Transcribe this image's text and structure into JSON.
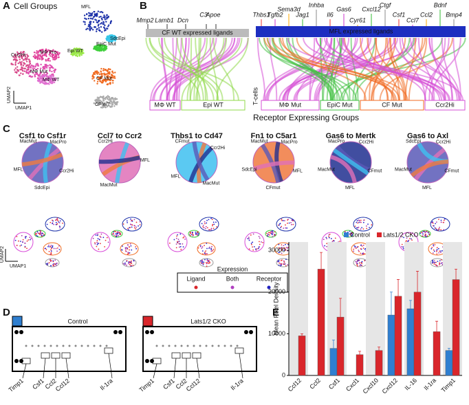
{
  "panel_a": {
    "label": "A",
    "title": "Cell Groups",
    "clusters": [
      "MFL",
      "SdcEpi",
      "EpiC Mut",
      "Epi WT",
      "MΦ Pro.",
      "Ccr2Hi",
      "MΦ Mut",
      "MΦ WT",
      "CF Mut",
      "CF WT"
    ],
    "axis_y": "UMAP2",
    "axis_x": "UMAP1"
  },
  "panel_b": {
    "label": "B",
    "left_genes": [
      "Mmp2",
      "Lamb1",
      "Dcn",
      "C3",
      "Apoe"
    ],
    "left_header": "CF WT expressed ligands",
    "right_genes": [
      "Thbs1",
      "Tgfb2",
      "Sema3d",
      "Jag1",
      "Inhba",
      "Il6",
      "Gas6",
      "Cyr61",
      "Cxcl12",
      "Ctgf",
      "Csf1",
      "Ccl7",
      "Ccl2",
      "Bdnf",
      "Bmp4"
    ],
    "right_header": "MFL expressed ligands",
    "left_groups": [
      "MΦ WT",
      "Epi WT"
    ],
    "side_label": "T-cells",
    "right_groups": [
      "MΦ Mut",
      "EpiC Mut",
      "CF Mut",
      "Ccr2Hi"
    ],
    "caption": "Receptor Expressing Groups"
  },
  "panel_c": {
    "label": "C",
    "plots": [
      {
        "title": "Csf1 to Csf1r",
        "sectors": [
          "MacMut",
          "MacPro",
          "Ccr2Hi",
          "SdcEpi",
          "MFL"
        ]
      },
      {
        "title": "Ccl7 to Ccr2",
        "sectors": [
          "Ccr2Hi",
          "MFL",
          "MacMut"
        ]
      },
      {
        "title": "Thbs1 to Cd47",
        "sectors": [
          "CFmut",
          "Ccr2Hi",
          "MacMut",
          "MFL"
        ]
      },
      {
        "title": "Fn1 to C5ar1",
        "sectors": [
          "MacMut",
          "MacPro",
          "MFL",
          "CFmut",
          "SdcEpi"
        ]
      },
      {
        "title": "Gas6 to Mertk",
        "sectors": [
          "MacPro",
          "Ccr2Hi",
          "CFmut",
          "MFL",
          "MacMut"
        ]
      },
      {
        "title": "Gas6 to Axl",
        "sectors": [
          "SdcEpi",
          "Ccr2Hi",
          "CFmut",
          "MFL",
          "MacMut"
        ]
      }
    ],
    "legend": {
      "title": "Expression",
      "items": [
        "Ligand",
        "Both",
        "Receptor"
      ]
    },
    "axis_y": "UMAP2",
    "axis_x": "UMAP1"
  },
  "panel_d": {
    "label": "D",
    "blots": [
      {
        "title": "Control",
        "labels": [
          "Timp1",
          "Csf1",
          "Ccl2",
          "Ccl12",
          "Il-1ra"
        ]
      },
      {
        "title": "Lats1/2 CKO",
        "labels": [
          "Timp1",
          "Csf1",
          "Ccl2",
          "Ccl12",
          "Il-1ra"
        ]
      }
    ]
  },
  "chart_data": {
    "type": "bar",
    "panel_label": "E",
    "y_label": "Mean Pixel Density",
    "categories": [
      "Ccl12",
      "Ccl2",
      "Csf1",
      "Cxcl1",
      "Cxcl10",
      "Cxcl12",
      "IL-16",
      "Il-1ra",
      "Timp1"
    ],
    "series": [
      {
        "name": "Control",
        "color": "#2f7fd0",
        "values": [
          0,
          0,
          6500,
          0,
          0,
          14500,
          16000,
          0,
          6000
        ],
        "errors": [
          0,
          0,
          2000,
          0,
          0,
          5500,
          2000,
          0,
          500
        ]
      },
      {
        "name": "Lats1/2 CKO",
        "color": "#d9262b",
        "values": [
          9500,
          25500,
          14000,
          5000,
          6000,
          19000,
          20000,
          10500,
          23000
        ],
        "errors": [
          500,
          4000,
          4500,
          800,
          800,
          4000,
          5000,
          2500,
          2500
        ]
      }
    ],
    "ylim": [
      0,
      32000
    ],
    "yticks": [
      0,
      10000,
      20000,
      30000
    ],
    "legend": "top-right"
  }
}
